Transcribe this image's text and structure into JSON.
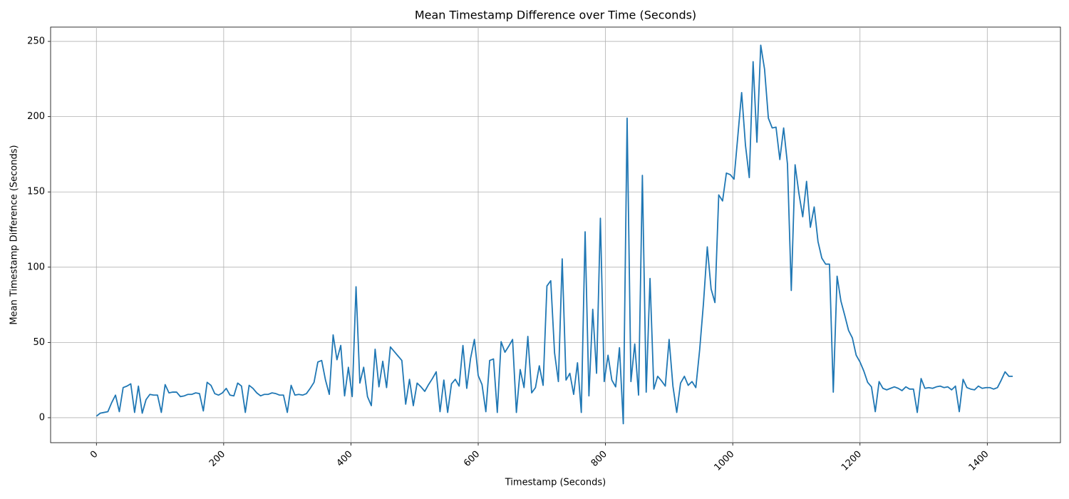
{
  "chart_data": {
    "type": "line",
    "title": "Mean Timestamp Difference over Time (Seconds)",
    "x_label": "Timestamp (Seconds)",
    "y_label": "Mean Timestamp Difference (Seconds)",
    "color": "#1f77b4",
    "grid": true,
    "xlim": [
      -72,
      1515
    ],
    "ylim": [
      -16.6,
      259.5
    ],
    "xticks": [
      0,
      200,
      400,
      600,
      800,
      1000,
      1200,
      1400
    ],
    "yticks": [
      0,
      50,
      100,
      150,
      200,
      250
    ],
    "x": [
      0,
      6,
      12,
      18,
      24,
      30,
      36,
      42,
      48,
      54,
      60,
      66,
      72,
      78,
      84,
      90,
      96,
      102,
      108,
      114,
      120,
      126,
      132,
      138,
      144,
      150,
      156,
      162,
      168,
      174,
      180,
      186,
      192,
      198,
      204,
      210,
      216,
      222,
      228,
      234,
      240,
      246,
      252,
      258,
      264,
      270,
      276,
      282,
      288,
      294,
      300,
      306,
      312,
      318,
      324,
      330,
      336,
      342,
      348,
      354,
      360,
      366,
      372,
      378,
      384,
      390,
      396,
      402,
      408,
      414,
      420,
      426,
      432,
      438,
      444,
      450,
      456,
      462,
      468,
      474,
      480,
      486,
      492,
      498,
      504,
      510,
      516,
      522,
      528,
      534,
      540,
      546,
      552,
      558,
      564,
      570,
      576,
      582,
      588,
      594,
      600,
      606,
      612,
      618,
      624,
      630,
      636,
      642,
      648,
      654,
      660,
      666,
      672,
      678,
      684,
      690,
      696,
      702,
      708,
      714,
      720,
      726,
      732,
      738,
      744,
      750,
      756,
      762,
      768,
      774,
      780,
      786,
      792,
      798,
      804,
      810,
      816,
      822,
      828,
      834,
      840,
      846,
      852,
      858,
      864,
      870,
      876,
      882,
      888,
      894,
      900,
      906,
      912,
      918,
      924,
      930,
      936,
      942,
      948,
      954,
      960,
      966,
      972,
      978,
      984,
      990,
      996,
      1002,
      1008,
      1014,
      1020,
      1026,
      1032,
      1038,
      1044,
      1050,
      1056,
      1062,
      1068,
      1074,
      1080,
      1086,
      1092,
      1098,
      1104,
      1110,
      1116,
      1122,
      1128,
      1134,
      1140,
      1146,
      1152,
      1158,
      1164,
      1170,
      1176,
      1182,
      1188,
      1194,
      1200,
      1206,
      1212,
      1218,
      1224,
      1230,
      1236,
      1242,
      1248,
      1254,
      1260,
      1266,
      1272,
      1278,
      1284,
      1290,
      1296,
      1302,
      1308,
      1314,
      1320,
      1326,
      1332,
      1338,
      1344,
      1350,
      1356,
      1362,
      1368,
      1374,
      1380,
      1386,
      1392,
      1398,
      1404,
      1410,
      1416,
      1422,
      1428,
      1434,
      1440
    ],
    "values": [
      1,
      3,
      3.5,
      4,
      10,
      15,
      4,
      20,
      21,
      22.5,
      3.5,
      21,
      3,
      12,
      15.5,
      15,
      15,
      3.5,
      22,
      16.5,
      17,
      17,
      14,
      14.5,
      15.5,
      15.5,
      16.5,
      16,
      4.5,
      23.5,
      21.5,
      16,
      15,
      16.5,
      19.5,
      15,
      14.5,
      23,
      21,
      3.5,
      21.5,
      19.5,
      16.5,
      14.5,
      15.5,
      15.5,
      16.5,
      16,
      15,
      15,
      3.5,
      21.5,
      15,
      15.5,
      15,
      16,
      19.5,
      23.5,
      37,
      38,
      25,
      15.5,
      55,
      38.5,
      48,
      14.5,
      33.5,
      14,
      87,
      23,
      33.5,
      14,
      8,
      45.5,
      20.5,
      37.5,
      20,
      47,
      44,
      41,
      38,
      9,
      25.5,
      8,
      23,
      20.5,
      17.5,
      22,
      26,
      30.5,
      4,
      25,
      3.5,
      22.5,
      25.5,
      21,
      48,
      19.5,
      39.5,
      52,
      28,
      22,
      4,
      38,
      39,
      3.5,
      50.5,
      43.5,
      47.5,
      52,
      3.5,
      32,
      20,
      54,
      16.5,
      20,
      34.5,
      21.5,
      87.5,
      91,
      43,
      24,
      105.5,
      25,
      29.5,
      15.5,
      36.5,
      3.5,
      123.5,
      14.5,
      72,
      29.5,
      132.5,
      24,
      41.5,
      25,
      20.5,
      46.5,
      -4,
      199,
      24,
      49,
      15,
      161,
      17,
      92.5,
      19,
      27.5,
      24.5,
      21,
      52,
      21,
      3.5,
      23,
      27.5,
      21.5,
      24,
      20,
      45,
      76,
      113.5,
      85.5,
      76.5,
      148,
      144,
      162.5,
      161.5,
      158.5,
      187,
      216,
      181,
      159.5,
      236.5,
      183,
      247.5,
      231.5,
      199,
      192.5,
      193,
      171.5,
      192.5,
      168.5,
      84.5,
      168,
      149,
      133.5,
      157,
      126.5,
      140,
      117,
      106,
      102,
      102,
      17,
      94,
      77.5,
      68,
      58,
      53,
      41.5,
      37,
      31,
      23.5,
      20.5,
      4,
      24,
      19.5,
      18.5,
      19.5,
      20.5,
      19.5,
      18,
      20.5,
      19,
      19,
      3.5,
      26,
      19.5,
      20,
      19.5,
      20.5,
      21,
      20,
      20.5,
      18.5,
      21,
      4,
      25.5,
      20,
      19,
      18.5,
      21,
      19.5,
      20,
      20,
      19,
      20,
      25,
      30.5,
      27.5,
      27.5
    ]
  }
}
